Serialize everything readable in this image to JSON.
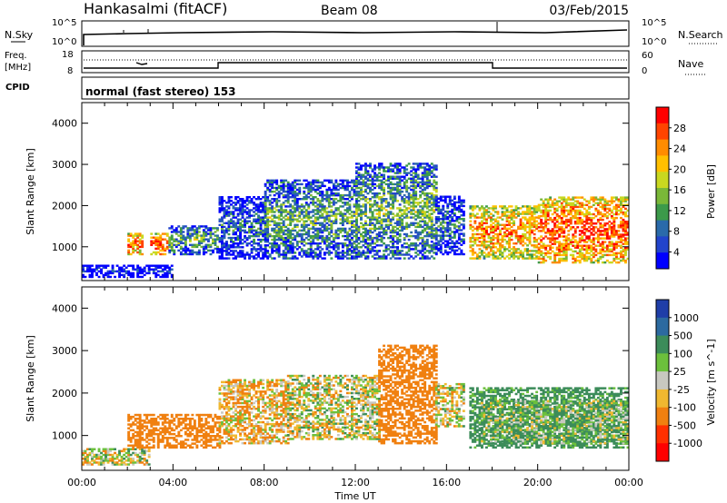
{
  "header": {
    "station": "Hankasalmi (fitACF)",
    "beam": "Beam 08",
    "date": "03/Feb/2015"
  },
  "nsky_panel": {
    "label": "N.Sky",
    "right_label": "N.Search",
    "ticks_left": [
      "10^5",
      "10^0"
    ],
    "ticks_right": [
      "10^5",
      "10^0"
    ]
  },
  "freq_panel": {
    "label_line1": "Freq.",
    "label_line2": "[MHz]",
    "ticks_left": [
      "18",
      "8"
    ],
    "ticks_right": [
      "60",
      "0"
    ],
    "right_label": "Nave"
  },
  "cpid_panel": {
    "label": "CPID",
    "mode_text": "normal (fast stereo) 153"
  },
  "power_colorbar": {
    "label": "Power [dB]",
    "tick_labels": [
      "28",
      "24",
      "20",
      "16",
      "12",
      "8",
      "4"
    ],
    "colors": [
      "#ff0000",
      "#ff4400",
      "#ff8c00",
      "#ffc000",
      "#c9d820",
      "#7ab838",
      "#3c9a4a",
      "#2a6aaa",
      "#2244cc",
      "#0000ff"
    ]
  },
  "velocity_colorbar": {
    "label": "Velocity [m s^-1]",
    "tick_labels": [
      "1000",
      "500",
      "100",
      "25",
      "-25",
      "-100",
      "-500",
      "-1000"
    ],
    "colors": [
      "#1f3ea8",
      "#2c6aa0",
      "#3c8c5a",
      "#6cc03c",
      "#c8c8c0",
      "#f0b830",
      "#f08010",
      "#ff3000",
      "#ff0000"
    ]
  },
  "x_ticks": [
    "00:00",
    "04:00",
    "08:00",
    "12:00",
    "16:00",
    "20:00",
    "00:00"
  ],
  "x_label": "Time UT",
  "chart_data": [
    {
      "type": "heatmap",
      "panel": "power",
      "xlabel": "Time UT",
      "ylabel": "Slant Range [km]",
      "x_range_hours": [
        0,
        24
      ],
      "ylim": [
        180,
        4500
      ],
      "y_ticks": [
        1000,
        2000,
        3000,
        4000
      ],
      "colorbar": "Power [dB]",
      "color_range": [
        3,
        30
      ],
      "regions": [
        {
          "t0": 2.0,
          "t1": 2.7,
          "r0": 800,
          "r1": 1300,
          "value": 26
        },
        {
          "t0": 3.0,
          "t1": 3.8,
          "r0": 800,
          "r1": 1300,
          "value": 27
        },
        {
          "t0": 3.8,
          "t1": 5.9,
          "r0": 800,
          "r1": 1500,
          "value": 14
        },
        {
          "t0": 6.0,
          "t1": 8.0,
          "r0": 700,
          "r1": 2200,
          "value": 10
        },
        {
          "t0": 8.0,
          "t1": 12.0,
          "r0": 700,
          "r1": 2600,
          "value": 14
        },
        {
          "t0": 12.0,
          "t1": 15.5,
          "r0": 700,
          "r1": 3000,
          "value": 15
        },
        {
          "t0": 15.5,
          "t1": 16.8,
          "r0": 800,
          "r1": 2200,
          "value": 10
        },
        {
          "t0": 17.0,
          "t1": 20.0,
          "r0": 700,
          "r1": 2000,
          "value": 24
        },
        {
          "t0": 20.0,
          "t1": 24.0,
          "r0": 600,
          "r1": 2200,
          "value": 27
        },
        {
          "t0": 0.0,
          "t1": 4.0,
          "r0": 250,
          "r1": 550,
          "value": 6
        }
      ]
    },
    {
      "type": "heatmap",
      "panel": "velocity",
      "xlabel": "Time UT",
      "ylabel": "Slant Range [km]",
      "x_range_hours": [
        0,
        24
      ],
      "ylim": [
        180,
        4500
      ],
      "y_ticks": [
        1000,
        2000,
        3000,
        4000
      ],
      "colorbar": "Velocity [m s^-1]",
      "color_range": [
        -1000,
        1000
      ],
      "regions": [
        {
          "t0": 0.0,
          "t1": 3.0,
          "r0": 300,
          "r1": 700,
          "value": 0
        },
        {
          "t0": 2.0,
          "t1": 6.0,
          "r0": 700,
          "r1": 1500,
          "value": -300
        },
        {
          "t0": 6.0,
          "t1": 9.0,
          "r0": 800,
          "r1": 2300,
          "value": -80
        },
        {
          "t0": 9.0,
          "t1": 13.0,
          "r0": 900,
          "r1": 2400,
          "value": 0
        },
        {
          "t0": 13.0,
          "t1": 15.5,
          "r0": 800,
          "r1": 3100,
          "value": -300
        },
        {
          "t0": 15.5,
          "t1": 16.8,
          "r0": 1200,
          "r1": 2200,
          "value": 0
        },
        {
          "t0": 17.0,
          "t1": 24.0,
          "r0": 700,
          "r1": 2100,
          "value": 200
        },
        {
          "t0": 17.5,
          "t1": 24.0,
          "r0": 800,
          "r1": 1800,
          "value": 80
        }
      ]
    }
  ]
}
